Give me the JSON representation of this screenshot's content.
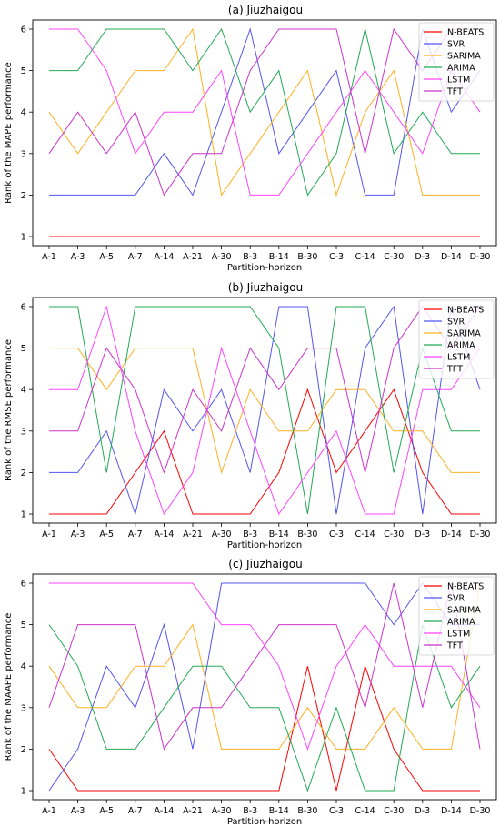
{
  "figure": {
    "title_a": "(a) Jiuzhaigou",
    "title_b": "(b) Jiuzhaigou",
    "title_c": "(c) Jiuzhaigou"
  },
  "chart_data": [
    {
      "type": "line",
      "title": "(a) Jiuzhaigou",
      "xlabel": "Partition-horizon",
      "ylabel": "Rank of the MAPE performance",
      "ylim": [
        1,
        6
      ],
      "yticks": [
        1,
        2,
        3,
        4,
        5,
        6
      ],
      "legend_position": "top-right",
      "grid": false,
      "categories": [
        "A-1",
        "A-3",
        "A-5",
        "A-7",
        "A-14",
        "A-21",
        "A-30",
        "B-3",
        "B-14",
        "B-30",
        "C-3",
        "C-14",
        "C-30",
        "D-3",
        "D-14",
        "D-30"
      ],
      "series": [
        {
          "name": "N-BEATS",
          "color": "#ff0000",
          "values": [
            1,
            1,
            1,
            1,
            1,
            1,
            1,
            1,
            1,
            1,
            1,
            1,
            1,
            1,
            1,
            1
          ]
        },
        {
          "name": "SVR",
          "color": "#5555ee",
          "values": [
            2,
            2,
            2,
            2,
            3,
            2,
            4,
            6,
            3,
            4,
            5,
            2,
            2,
            6,
            4,
            5
          ]
        },
        {
          "name": "SARIMA",
          "color": "#ffb020",
          "values": [
            4,
            3,
            4,
            5,
            5,
            6,
            2,
            3,
            4,
            5,
            2,
            4,
            5,
            2,
            2,
            2
          ]
        },
        {
          "name": "ARIMA",
          "color": "#22aa55",
          "values": [
            5,
            5,
            6,
            6,
            6,
            5,
            6,
            4,
            5,
            2,
            3,
            6,
            3,
            4,
            3,
            3
          ]
        },
        {
          "name": "LSTM",
          "color": "#ff44ff",
          "values": [
            6,
            6,
            5,
            3,
            4,
            4,
            5,
            2,
            2,
            3,
            4,
            5,
            4,
            3,
            5,
            4
          ]
        },
        {
          "name": "TFT",
          "color": "#cc33cc",
          "values": [
            3,
            4,
            3,
            4,
            2,
            3,
            3,
            5,
            6,
            6,
            6,
            3,
            6,
            5,
            6,
            6
          ]
        }
      ]
    },
    {
      "type": "line",
      "title": "(b) Jiuzhaigou",
      "xlabel": "Partition-horizon",
      "ylabel": "Rank of the RMSE performance",
      "ylim": [
        1,
        6
      ],
      "yticks": [
        1,
        2,
        3,
        4,
        5,
        6
      ],
      "legend_position": "top-right",
      "grid": false,
      "categories": [
        "A-1",
        "A-3",
        "A-5",
        "A-7",
        "A-14",
        "A-21",
        "A-30",
        "B-3",
        "B-14",
        "B-30",
        "C-3",
        "C-14",
        "C-30",
        "D-3",
        "D-14",
        "D-30"
      ],
      "series": [
        {
          "name": "N-BEATS",
          "color": "#ff0000",
          "values": [
            1,
            1,
            1,
            2,
            3,
            1,
            1,
            1,
            2,
            4,
            2,
            3,
            4,
            2,
            1,
            1
          ]
        },
        {
          "name": "SVR",
          "color": "#5555ee",
          "values": [
            2,
            2,
            3,
            1,
            4,
            3,
            4,
            2,
            6,
            6,
            1,
            5,
            6,
            1,
            6,
            4
          ]
        },
        {
          "name": "SARIMA",
          "color": "#ffb020",
          "values": [
            5,
            5,
            4,
            5,
            5,
            5,
            2,
            4,
            3,
            3,
            4,
            4,
            3,
            3,
            2,
            2
          ]
        },
        {
          "name": "ARIMA",
          "color": "#22aa55",
          "values": [
            6,
            6,
            2,
            6,
            6,
            6,
            6,
            6,
            5,
            1,
            6,
            6,
            2,
            5,
            3,
            3
          ]
        },
        {
          "name": "LSTM",
          "color": "#ff44ff",
          "values": [
            4,
            4,
            6,
            3,
            1,
            2,
            5,
            3,
            1,
            2,
            3,
            1,
            1,
            4,
            4,
            5
          ]
        },
        {
          "name": "TFT",
          "color": "#cc33cc",
          "values": [
            3,
            3,
            5,
            4,
            2,
            4,
            3,
            5,
            4,
            5,
            5,
            2,
            5,
            6,
            5,
            6
          ]
        }
      ]
    },
    {
      "type": "line",
      "title": "(c) Jiuzhaigou",
      "xlabel": "Partition-horizon",
      "ylabel": "Rank of the MAAPE performance",
      "ylim": [
        1,
        6
      ],
      "yticks": [
        1,
        2,
        3,
        4,
        5,
        6
      ],
      "legend_position": "top-right",
      "grid": false,
      "categories": [
        "A-1",
        "A-3",
        "A-5",
        "A-7",
        "A-14",
        "A-21",
        "A-30",
        "B-3",
        "B-14",
        "B-30",
        "C-3",
        "C-14",
        "C-30",
        "D-3",
        "D-14",
        "D-30"
      ],
      "series": [
        {
          "name": "N-BEATS",
          "color": "#ff0000",
          "values": [
            2,
            1,
            1,
            1,
            1,
            1,
            1,
            1,
            1,
            4,
            1,
            4,
            2,
            1,
            1,
            1
          ]
        },
        {
          "name": "SVR",
          "color": "#5555ee",
          "values": [
            1,
            2,
            4,
            3,
            5,
            2,
            6,
            6,
            6,
            6,
            6,
            6,
            5,
            6,
            5,
            5
          ]
        },
        {
          "name": "SARIMA",
          "color": "#ffb020",
          "values": [
            4,
            3,
            3,
            4,
            4,
            5,
            2,
            2,
            2,
            3,
            2,
            2,
            3,
            2,
            2,
            6
          ]
        },
        {
          "name": "ARIMA",
          "color": "#22aa55",
          "values": [
            5,
            4,
            2,
            2,
            3,
            4,
            4,
            3,
            3,
            1,
            3,
            1,
            1,
            5,
            3,
            4
          ]
        },
        {
          "name": "LSTM",
          "color": "#ff44ff",
          "values": [
            6,
            6,
            6,
            6,
            6,
            6,
            5,
            5,
            4,
            2,
            4,
            5,
            4,
            4,
            4,
            3
          ]
        },
        {
          "name": "TFT",
          "color": "#cc33cc",
          "values": [
            3,
            5,
            5,
            5,
            2,
            3,
            3,
            4,
            5,
            5,
            5,
            3,
            6,
            3,
            6,
            2
          ]
        }
      ]
    }
  ]
}
